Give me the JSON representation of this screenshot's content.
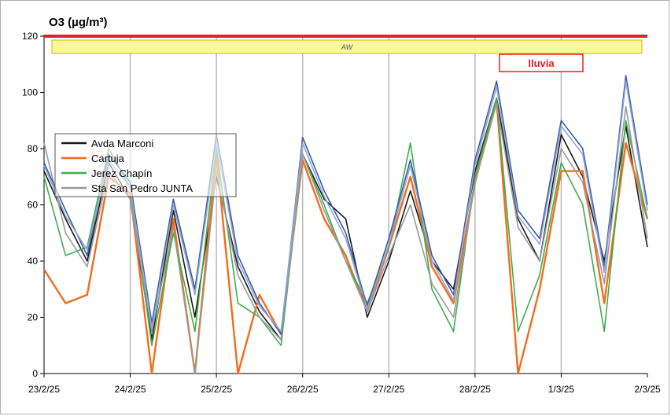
{
  "chart_data": {
    "type": "line",
    "title": "O3 (µg/m³)",
    "xlabel": "",
    "ylabel": "",
    "ylim": [
      0,
      120
    ],
    "yticks": [
      "0",
      "20",
      "40",
      "60",
      "80",
      "100",
      "120"
    ],
    "xticks": [
      "23/2/25",
      "24/2/25",
      "25/2/25",
      "26/2/25",
      "27/2/25",
      "28/2/25",
      "1/3/25",
      "2/3/25"
    ],
    "x_start": "2025-02-23",
    "x_end": "2025-03-02",
    "grid": "vertical",
    "threshold": {
      "value": 120,
      "color": "#e8201f"
    },
    "annotations": [
      {
        "text": "AW",
        "kind": "band",
        "fill": "#fbf79c",
        "border": "#c6c000"
      },
      {
        "text": "lluvia",
        "kind": "box",
        "fill": "#ffffff",
        "border": "#e8201f",
        "color": "#e8201f"
      }
    ],
    "legend_position": "left-middle",
    "series": [
      {
        "name": "Avda Marconi",
        "color": "#1a1a1a",
        "x": [
          "2025-02-23 00:00",
          "2025-02-23 06:00",
          "2025-02-23 12:00",
          "2025-02-23 18:00",
          "2025-02-24 00:00",
          "2025-02-24 06:00",
          "2025-02-24 12:00",
          "2025-02-24 18:00",
          "2025-02-25 00:00",
          "2025-02-25 06:00",
          "2025-02-25 12:00",
          "2025-02-25 18:00",
          "2025-02-26 00:00",
          "2025-02-26 06:00",
          "2025-02-26 12:00",
          "2025-02-26 18:00",
          "2025-02-27 00:00",
          "2025-02-27 06:00",
          "2025-02-27 12:00",
          "2025-02-27 18:00",
          "2025-02-28 00:00",
          "2025-02-28 06:00",
          "2025-02-28 12:00",
          "2025-02-28 18:00",
          "2025-03-01 00:00",
          "2025-03-01 06:00",
          "2025-03-01 12:00",
          "2025-03-01 18:00",
          "2025-03-02 00:00"
        ],
        "values": [
          72,
          55,
          40,
          75,
          62,
          12,
          58,
          20,
          70,
          38,
          22,
          12,
          78,
          62,
          55,
          20,
          40,
          65,
          40,
          30,
          72,
          98,
          55,
          40,
          85,
          70,
          40,
          88,
          45
        ]
      },
      {
        "name": "Cartuja",
        "color": "#f26d1c",
        "x": [
          "2025-02-23 00:00",
          "2025-02-23 06:00",
          "2025-02-23 12:00",
          "2025-02-23 18:00",
          "2025-02-24 00:00",
          "2025-02-24 06:00",
          "2025-02-24 12:00",
          "2025-02-24 18:00",
          "2025-02-25 00:00",
          "2025-02-25 06:00",
          "2025-02-25 12:00",
          "2025-02-25 18:00",
          "2025-02-26 00:00",
          "2025-02-26 06:00",
          "2025-02-26 12:00",
          "2025-02-26 18:00",
          "2025-02-27 00:00",
          "2025-02-27 06:00",
          "2025-02-27 12:00",
          "2025-02-27 18:00",
          "2025-02-28 00:00",
          "2025-02-28 06:00",
          "2025-02-28 12:00",
          "2025-02-28 18:00",
          "2025-03-01 00:00",
          "2025-03-01 06:00",
          "2025-03-01 12:00",
          "2025-03-01 18:00",
          "2025-03-02 00:00"
        ],
        "values": [
          37,
          25,
          28,
          70,
          64,
          0,
          55,
          0,
          78,
          0,
          28,
          14,
          76,
          55,
          42,
          22,
          45,
          70,
          38,
          25,
          68,
          97,
          0,
          30,
          72,
          72,
          25,
          82,
          55
        ]
      },
      {
        "name": "Jerez Chapín",
        "color": "#3dae4c",
        "x": [
          "2025-02-23 00:00",
          "2025-02-23 06:00",
          "2025-02-23 12:00",
          "2025-02-23 18:00",
          "2025-02-24 00:00",
          "2025-02-24 06:00",
          "2025-02-24 12:00",
          "2025-02-24 18:00",
          "2025-02-25 00:00",
          "2025-02-25 06:00",
          "2025-02-25 12:00",
          "2025-02-25 18:00",
          "2025-02-26 00:00",
          "2025-02-26 06:00",
          "2025-02-26 12:00",
          "2025-02-26 18:00",
          "2025-02-27 00:00",
          "2025-02-27 06:00",
          "2025-02-27 12:00",
          "2025-02-27 18:00",
          "2025-02-28 00:00",
          "2025-02-28 06:00",
          "2025-02-28 12:00",
          "2025-02-28 18:00",
          "2025-03-01 00:00",
          "2025-03-01 06:00",
          "2025-03-01 12:00",
          "2025-03-01 18:00",
          "2025-03-02 00:00"
        ],
        "values": [
          70,
          42,
          45,
          80,
          66,
          10,
          50,
          15,
          80,
          25,
          20,
          10,
          78,
          60,
          40,
          25,
          45,
          82,
          30,
          15,
          70,
          98,
          15,
          35,
          75,
          60,
          15,
          90,
          55
        ]
      },
      {
        "name": "Sta San Pedro JUNTA",
        "color": "#9a9a9a",
        "x": [
          "2025-02-23 00:00",
          "2025-02-23 06:00",
          "2025-02-23 12:00",
          "2025-02-23 18:00",
          "2025-02-24 00:00",
          "2025-02-24 06:00",
          "2025-02-24 12:00",
          "2025-02-24 18:00",
          "2025-02-25 00:00",
          "2025-02-25 06:00",
          "2025-02-25 12:00",
          "2025-02-25 18:00",
          "2025-02-26 00:00",
          "2025-02-26 06:00",
          "2025-02-26 12:00",
          "2025-02-26 18:00",
          "2025-02-27 00:00",
          "2025-02-27 06:00",
          "2025-02-27 12:00",
          "2025-02-27 18:00",
          "2025-02-28 00:00",
          "2025-02-28 06:00",
          "2025-02-28 12:00",
          "2025-02-28 18:00",
          "2025-03-01 00:00",
          "2025-03-01 06:00",
          "2025-03-01 12:00",
          "2025-03-01 18:00",
          "2025-03-02 00:00"
        ],
        "values": [
          82,
          50,
          38,
          72,
          62,
          15,
          52,
          0,
          72,
          35,
          20,
          12,
          78,
          58,
          40,
          22,
          42,
          60,
          32,
          20,
          68,
          96,
          52,
          40,
          80,
          68,
          32,
          95,
          48
        ]
      },
      {
        "name": "",
        "color": "#3c5aa8",
        "x": [
          "2025-02-23 00:00",
          "2025-02-23 06:00",
          "2025-02-23 12:00",
          "2025-02-23 18:00",
          "2025-02-24 00:00",
          "2025-02-24 06:00",
          "2025-02-24 12:00",
          "2025-02-24 18:00",
          "2025-02-25 00:00",
          "2025-02-25 06:00",
          "2025-02-25 12:00",
          "2025-02-25 18:00",
          "2025-02-26 00:00",
          "2025-02-26 06:00",
          "2025-02-26 12:00",
          "2025-02-26 18:00",
          "2025-02-27 00:00",
          "2025-02-27 06:00",
          "2025-02-27 12:00",
          "2025-02-27 18:00",
          "2025-02-28 00:00",
          "2025-02-28 06:00",
          "2025-02-28 12:00",
          "2025-02-28 18:00",
          "2025-03-01 00:00",
          "2025-03-01 06:00",
          "2025-03-01 12:00",
          "2025-03-01 18:00",
          "2025-03-02 00:00"
        ],
        "values": [
          75,
          58,
          42,
          78,
          68,
          18,
          62,
          30,
          85,
          42,
          25,
          14,
          84,
          65,
          50,
          24,
          48,
          76,
          42,
          28,
          76,
          104,
          58,
          48,
          90,
          80,
          38,
          106,
          60
        ]
      },
      {
        "name": "",
        "color": "#8fa6d6",
        "x": [
          "2025-02-23 00:00",
          "2025-02-23 06:00",
          "2025-02-23 12:00",
          "2025-02-23 18:00",
          "2025-02-24 00:00",
          "2025-02-24 06:00",
          "2025-02-24 12:00",
          "2025-02-24 18:00",
          "2025-02-25 00:00",
          "2025-02-25 06:00",
          "2025-02-25 12:00",
          "2025-02-25 18:00",
          "2025-02-26 00:00",
          "2025-02-26 06:00",
          "2025-02-26 12:00",
          "2025-02-26 18:00",
          "2025-02-27 00:00",
          "2025-02-27 06:00",
          "2025-02-27 12:00",
          "2025-02-27 18:00",
          "2025-02-28 00:00",
          "2025-02-28 06:00",
          "2025-02-28 12:00",
          "2025-02-28 18:00",
          "2025-03-01 00:00",
          "2025-03-01 06:00",
          "2025-03-01 12:00",
          "2025-03-01 18:00",
          "2025-03-02 00:00"
        ],
        "values": [
          74,
          56,
          44,
          76,
          66,
          16,
          60,
          28,
          82,
          40,
          24,
          15,
          82,
          63,
          48,
          23,
          46,
          74,
          40,
          26,
          74,
          102,
          56,
          46,
          88,
          78,
          36,
          104,
          58
        ]
      }
    ]
  }
}
